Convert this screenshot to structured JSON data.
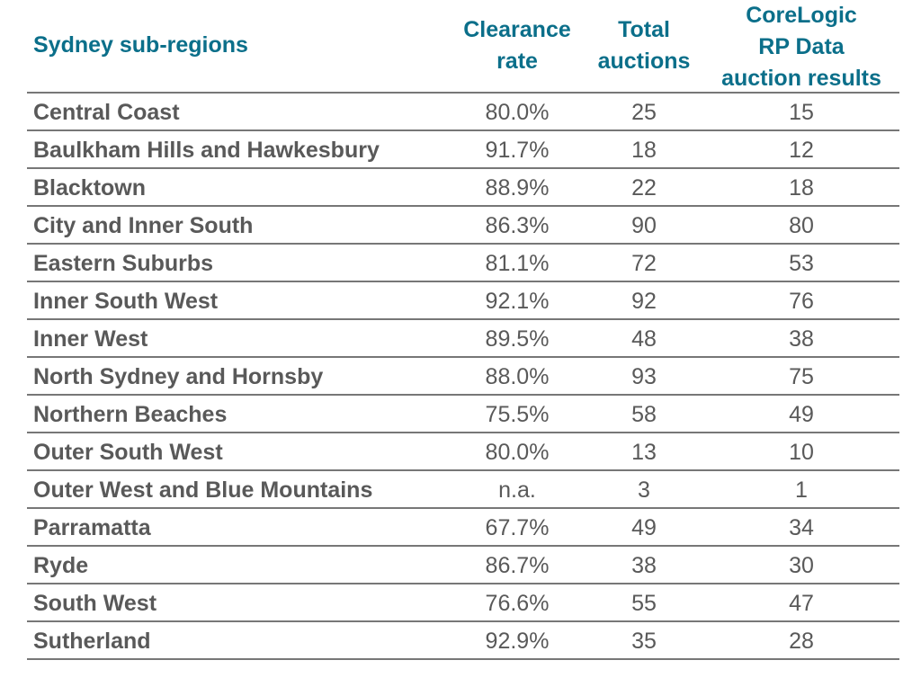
{
  "header": {
    "region": "Sydney sub-regions",
    "clearance": [
      "Clearance",
      "rate"
    ],
    "total": [
      "Total",
      "auctions"
    ],
    "corelogic": [
      "CoreLogic",
      "RP Data",
      "auction results"
    ]
  },
  "rows": [
    {
      "region": "Central Coast",
      "clearance": "80.0%",
      "total": "25",
      "corelogic": "15"
    },
    {
      "region": "Baulkham Hills and Hawkesbury",
      "clearance": "91.7%",
      "total": "18",
      "corelogic": "12"
    },
    {
      "region": "Blacktown",
      "clearance": "88.9%",
      "total": "22",
      "corelogic": "18"
    },
    {
      "region": "City and Inner South",
      "clearance": "86.3%",
      "total": "90",
      "corelogic": "80"
    },
    {
      "region": "Eastern Suburbs",
      "clearance": "81.1%",
      "total": "72",
      "corelogic": "53"
    },
    {
      "region": "Inner South West",
      "clearance": "92.1%",
      "total": "92",
      "corelogic": "76"
    },
    {
      "region": "Inner West",
      "clearance": "89.5%",
      "total": "48",
      "corelogic": "38"
    },
    {
      "region": "North Sydney and Hornsby",
      "clearance": "88.0%",
      "total": "93",
      "corelogic": "75"
    },
    {
      "region": "Northern Beaches",
      "clearance": "75.5%",
      "total": "58",
      "corelogic": "49"
    },
    {
      "region": "Outer South West",
      "clearance": "80.0%",
      "total": "13",
      "corelogic": "10"
    },
    {
      "region": "Outer West and Blue Mountains",
      "clearance": "n.a.",
      "total": "3",
      "corelogic": "1"
    },
    {
      "region": "Parramatta",
      "clearance": "67.7%",
      "total": "49",
      "corelogic": "34"
    },
    {
      "region": "Ryde",
      "clearance": "86.7%",
      "total": "38",
      "corelogic": "30"
    },
    {
      "region": "South West",
      "clearance": "76.6%",
      "total": "55",
      "corelogic": "47"
    },
    {
      "region": "Sutherland",
      "clearance": "92.9%",
      "total": "35",
      "corelogic": "28"
    }
  ],
  "colors": {
    "header_text": "#0b6f8a",
    "body_text": "#595959",
    "rule": "#777777"
  }
}
